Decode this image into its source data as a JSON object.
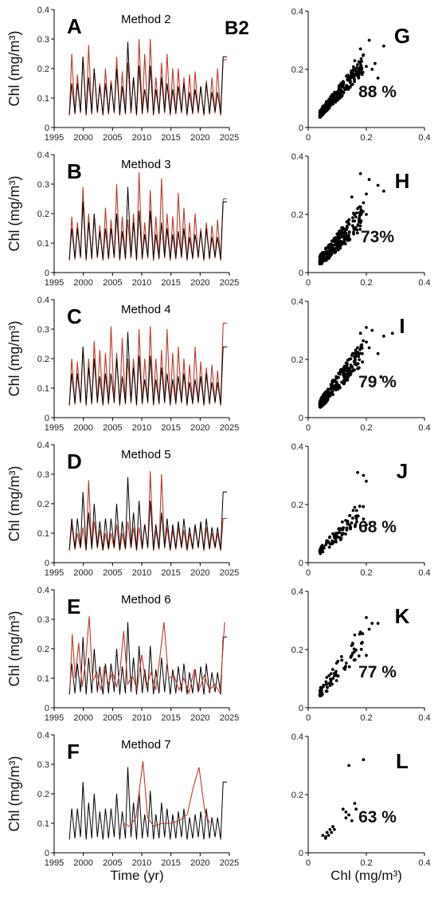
{
  "figure_label": "B2",
  "left_xlabel": "Time (yr)",
  "right_xlabel": "Chl (mg/m³)",
  "colors": {
    "observed": "#000000",
    "model": "#c0392b"
  },
  "chart_data": [
    {
      "id": "A",
      "type": "line",
      "title": "Method 2",
      "ylabel": "Chl (mg/m³)",
      "xlim": [
        1995,
        2025
      ],
      "ylim": [
        0,
        0.4
      ],
      "xticks": [
        "1995",
        "2000",
        "2005",
        "2010",
        "2015",
        "2020",
        "2025"
      ],
      "yticks": [
        "0",
        "0.1",
        "0.2",
        "0.3",
        "0.4"
      ],
      "series": [],
      "observed_peaks": [
        0.15,
        0.15,
        0.24,
        0.17,
        0.2,
        0.14,
        0.15,
        0.15,
        0.2,
        0.14,
        0.29,
        0.17,
        0.21,
        0.13,
        0.21,
        0.13,
        0.17,
        0.15,
        0.13,
        0.14,
        0.15,
        0.12,
        0.13,
        0.14,
        0.15,
        0.12,
        0.12,
        0.24
      ],
      "model_peaks": [
        0.25,
        0.18,
        0.24,
        0.28,
        0.2,
        0.15,
        0.2,
        0.16,
        0.24,
        0.19,
        0.22,
        0.17,
        0.3,
        0.25,
        0.3,
        0.17,
        0.22,
        0.25,
        0.2,
        0.2,
        0.17,
        0.18,
        0.19,
        0.14,
        0.16,
        0.17,
        0.2,
        0.23
      ],
      "model_irregular": false
    },
    {
      "id": "B",
      "type": "line",
      "title": "Method 3",
      "ylabel": "Chl (mg/m³)",
      "xlim": [
        1995,
        2025
      ],
      "ylim": [
        0,
        0.4
      ],
      "xticks": [
        "1995",
        "2000",
        "2005",
        "2010",
        "2015",
        "2020",
        "2025"
      ],
      "yticks": [
        "0",
        "0.1",
        "0.2",
        "0.3",
        "0.4"
      ],
      "series": [],
      "observed_peaks": [
        0.15,
        0.15,
        0.24,
        0.17,
        0.2,
        0.14,
        0.15,
        0.15,
        0.2,
        0.14,
        0.29,
        0.17,
        0.21,
        0.13,
        0.21,
        0.13,
        0.17,
        0.15,
        0.13,
        0.14,
        0.15,
        0.12,
        0.13,
        0.14,
        0.15,
        0.12,
        0.12,
        0.24
      ],
      "model_peaks": [
        0.19,
        0.17,
        0.29,
        0.2,
        0.19,
        0.16,
        0.22,
        0.18,
        0.3,
        0.19,
        0.18,
        0.2,
        0.34,
        0.17,
        0.28,
        0.19,
        0.32,
        0.2,
        0.19,
        0.27,
        0.22,
        0.17,
        0.2,
        0.15,
        0.17,
        0.16,
        0.18,
        0.25
      ],
      "model_irregular": false
    },
    {
      "id": "C",
      "type": "line",
      "title": "Method 4",
      "ylabel": "Chl (mg/m³)",
      "xlim": [
        1995,
        2025
      ],
      "ylim": [
        0,
        0.4
      ],
      "xticks": [
        "1995",
        "2000",
        "2005",
        "2010",
        "2015",
        "2020",
        "2025"
      ],
      "yticks": [
        "0",
        "0.1",
        "0.2",
        "0.3",
        "0.4"
      ],
      "series": [],
      "observed_peaks": [
        0.15,
        0.15,
        0.24,
        0.17,
        0.2,
        0.14,
        0.15,
        0.15,
        0.2,
        0.14,
        0.29,
        0.17,
        0.21,
        0.13,
        0.21,
        0.13,
        0.17,
        0.15,
        0.13,
        0.14,
        0.15,
        0.12,
        0.13,
        0.14,
        0.15,
        0.12,
        0.12,
        0.24
      ],
      "model_peaks": [
        0.2,
        0.19,
        0.24,
        0.2,
        0.26,
        0.23,
        0.22,
        0.31,
        0.22,
        0.27,
        0.2,
        0.2,
        0.3,
        0.2,
        0.31,
        0.2,
        0.23,
        0.3,
        0.22,
        0.24,
        0.2,
        0.18,
        0.24,
        0.19,
        0.17,
        0.18,
        0.16,
        0.32
      ],
      "model_irregular": false
    },
    {
      "id": "D",
      "type": "line",
      "title": "Method 5",
      "ylabel": "Chl (mg/m³)",
      "xlim": [
        1995,
        2025
      ],
      "ylim": [
        0,
        0.4
      ],
      "xticks": [
        "1995",
        "2000",
        "2005",
        "2010",
        "2015",
        "2020",
        "2025"
      ],
      "yticks": [
        "0",
        "0.1",
        "0.2",
        "0.3",
        "0.4"
      ],
      "series": [],
      "observed_peaks": [
        0.15,
        0.15,
        0.24,
        0.17,
        0.2,
        0.14,
        0.15,
        0.15,
        0.2,
        0.14,
        0.29,
        0.17,
        0.21,
        0.13,
        0.21,
        0.13,
        0.17,
        0.15,
        0.13,
        0.14,
        0.15,
        0.12,
        0.13,
        0.14,
        0.15,
        0.12,
        0.12,
        0.24
      ],
      "model_peaks": [
        0.13,
        0.1,
        0.12,
        0.28,
        0.14,
        0.11,
        0.1,
        0.1,
        0.13,
        0.1,
        0.14,
        0.12,
        0.12,
        0.13,
        0.31,
        0.11,
        0.3,
        0.12,
        0.11,
        0.12,
        0.11,
        0.1,
        0.12,
        0.13,
        0.12,
        0.1,
        0.1,
        0.15
      ],
      "model_irregular": false
    },
    {
      "id": "E",
      "type": "line",
      "title": "Method 6",
      "ylabel": "Chl (mg/m³)",
      "xlim": [
        1995,
        2025
      ],
      "ylim": [
        0,
        0.4
      ],
      "xticks": [
        "1995",
        "2000",
        "2005",
        "2010",
        "2015",
        "2020",
        "2025"
      ],
      "yticks": [
        "0",
        "0.1",
        "0.2",
        "0.3",
        "0.4"
      ],
      "series": [],
      "observed_peaks": [
        0.15,
        0.15,
        0.24,
        0.17,
        0.2,
        0.14,
        0.15,
        0.15,
        0.2,
        0.14,
        0.29,
        0.17,
        0.21,
        0.13,
        0.21,
        0.13,
        0.17,
        0.15,
        0.13,
        0.14,
        0.15,
        0.12,
        0.13,
        0.14,
        0.15,
        0.12,
        0.12,
        0.24
      ],
      "model_irregular": true,
      "model_points": [
        [
          1997.7,
          0.06
        ],
        [
          1998.1,
          0.25
        ],
        [
          1998.6,
          0.1
        ],
        [
          1999.2,
          0.22
        ],
        [
          1999.8,
          0.07
        ],
        [
          2000.4,
          0.16
        ],
        [
          2001.0,
          0.31
        ],
        [
          2001.6,
          0.09
        ],
        [
          2002.3,
          0.12
        ],
        [
          2003.0,
          0.06
        ],
        [
          2003.6,
          0.14
        ],
        [
          2004.3,
          0.08
        ],
        [
          2005.0,
          0.12
        ],
        [
          2005.7,
          0.07
        ],
        [
          2006.3,
          0.13
        ],
        [
          2006.9,
          0.26
        ],
        [
          2007.6,
          0.08
        ],
        [
          2008.4,
          0.11
        ],
        [
          2009.2,
          0.06
        ],
        [
          2010.0,
          0.18
        ],
        [
          2010.8,
          0.07
        ],
        [
          2011.6,
          0.12
        ],
        [
          2012.4,
          0.06
        ],
        [
          2013.1,
          0.17
        ],
        [
          2013.8,
          0.29
        ],
        [
          2014.6,
          0.1
        ],
        [
          2015.5,
          0.11
        ],
        [
          2016.4,
          0.06
        ],
        [
          2017.2,
          0.1
        ],
        [
          2018.1,
          0.05
        ],
        [
          2019.0,
          0.13
        ],
        [
          2019.8,
          0.06
        ],
        [
          2020.7,
          0.11
        ],
        [
          2021.6,
          0.06
        ],
        [
          2022.5,
          0.08
        ],
        [
          2023.4,
          0.05
        ],
        [
          2024.2,
          0.29
        ]
      ]
    },
    {
      "id": "F",
      "type": "line",
      "title": "Method 7",
      "ylabel": "Chl (mg/m³)",
      "xlim": [
        1995,
        2025
      ],
      "ylim": [
        0,
        0.4
      ],
      "xticks": [
        "1995",
        "2000",
        "2005",
        "2010",
        "2015",
        "2020",
        "2025"
      ],
      "yticks": [
        "0",
        "0.1",
        "0.2",
        "0.3",
        "0.4"
      ],
      "series": [],
      "observed_peaks": [
        0.15,
        0.15,
        0.24,
        0.17,
        0.2,
        0.14,
        0.15,
        0.15,
        0.2,
        0.14,
        0.29,
        0.17,
        0.21,
        0.13,
        0.21,
        0.13,
        0.17,
        0.15,
        0.13,
        0.14,
        0.15,
        0.12,
        0.13,
        0.14,
        0.15,
        0.12,
        0.12,
        0.24
      ],
      "model_irregular": true,
      "model_points": [
        [
          2006.8,
          0.1
        ],
        [
          2008.0,
          0.09
        ],
        [
          2009.0,
          0.12
        ],
        [
          2010.2,
          0.31
        ],
        [
          2011.0,
          0.12
        ],
        [
          2012.0,
          0.09
        ],
        [
          2013.5,
          0.1
        ],
        [
          2015.0,
          0.1
        ],
        [
          2016.5,
          0.11
        ],
        [
          2017.8,
          0.13
        ],
        [
          2018.8,
          0.22
        ],
        [
          2019.8,
          0.29
        ],
        [
          2020.8,
          0.14
        ],
        [
          2021.6,
          0.1
        ]
      ]
    },
    {
      "id": "G",
      "type": "scatter",
      "label": "88 %",
      "xlim": [
        0,
        0.4
      ],
      "ylim": [
        0,
        0.4
      ],
      "xticks": [
        "0",
        "0.2",
        "0.4"
      ],
      "yticks": [
        "0",
        "0.2",
        "0.4"
      ],
      "n": 240,
      "spread": 0.022,
      "slope": 1.15,
      "seed": 11,
      "extra": [
        [
          0.21,
          0.3
        ],
        [
          0.26,
          0.28
        ],
        [
          0.19,
          0.25
        ],
        [
          0.23,
          0.22
        ],
        [
          0.2,
          0.21
        ],
        [
          0.24,
          0.17
        ],
        [
          0.18,
          0.27
        ],
        [
          0.16,
          0.23
        ],
        [
          0.22,
          0.2
        ]
      ]
    },
    {
      "id": "H",
      "type": "scatter",
      "label": "73%",
      "xlim": [
        0,
        0.4
      ],
      "ylim": [
        0,
        0.4
      ],
      "xticks": [
        "0",
        "0.2",
        "0.4"
      ],
      "yticks": [
        "0",
        "0.2",
        "0.4"
      ],
      "n": 240,
      "spread": 0.03,
      "slope": 1.05,
      "seed": 23,
      "extra": [
        [
          0.18,
          0.34
        ],
        [
          0.21,
          0.32
        ],
        [
          0.26,
          0.28
        ],
        [
          0.2,
          0.2
        ],
        [
          0.24,
          0.3
        ],
        [
          0.2,
          0.27
        ],
        [
          0.17,
          0.22
        ],
        [
          0.15,
          0.26
        ],
        [
          0.19,
          0.24
        ]
      ]
    },
    {
      "id": "I",
      "type": "scatter",
      "label": "79 %",
      "xlim": [
        0,
        0.4
      ],
      "ylim": [
        0,
        0.4
      ],
      "xticks": [
        "0",
        "0.2",
        "0.4"
      ],
      "yticks": [
        "0",
        "0.2",
        "0.4"
      ],
      "n": 240,
      "spread": 0.028,
      "slope": 1.2,
      "seed": 37,
      "extra": [
        [
          0.2,
          0.31
        ],
        [
          0.22,
          0.3
        ],
        [
          0.29,
          0.29
        ],
        [
          0.25,
          0.14
        ],
        [
          0.26,
          0.28
        ],
        [
          0.2,
          0.26
        ],
        [
          0.21,
          0.24
        ],
        [
          0.24,
          0.22
        ],
        [
          0.18,
          0.29
        ]
      ]
    },
    {
      "id": "J",
      "type": "scatter",
      "label": "68 %",
      "xlim": [
        0,
        0.4
      ],
      "ylim": [
        0,
        0.4
      ],
      "xticks": [
        "0",
        "0.2",
        "0.4"
      ],
      "yticks": [
        "0",
        "0.2",
        "0.4"
      ],
      "n": 85,
      "spread": 0.025,
      "slope": 0.95,
      "seed": 41,
      "extra": [
        [
          0.17,
          0.31
        ],
        [
          0.2,
          0.28
        ],
        [
          0.19,
          0.3
        ],
        [
          0.2,
          0.13
        ],
        [
          0.19,
          0.15
        ],
        [
          0.16,
          0.19
        ]
      ]
    },
    {
      "id": "K",
      "type": "scatter",
      "label": "77 %",
      "xlim": [
        0,
        0.4
      ],
      "ylim": [
        0,
        0.4
      ],
      "xticks": [
        "0",
        "0.2",
        "0.4"
      ],
      "yticks": [
        "0",
        "0.2",
        "0.4"
      ],
      "n": 70,
      "spread": 0.03,
      "slope": 1.25,
      "seed": 53,
      "extra": [
        [
          0.2,
          0.31
        ],
        [
          0.22,
          0.29
        ],
        [
          0.24,
          0.29
        ],
        [
          0.18,
          0.26
        ],
        [
          0.16,
          0.25
        ],
        [
          0.21,
          0.27
        ],
        [
          0.2,
          0.18
        ],
        [
          0.15,
          0.18
        ]
      ]
    },
    {
      "id": "L",
      "type": "scatter",
      "label": "63 %",
      "xlim": [
        0,
        0.4
      ],
      "ylim": [
        0,
        0.4
      ],
      "xticks": [
        "0",
        "0.2",
        "0.4"
      ],
      "yticks": [
        "0",
        "0.2",
        "0.4"
      ],
      "n": 0,
      "spread": 0,
      "slope": 1,
      "seed": 61,
      "extra": [
        [
          0.05,
          0.06
        ],
        [
          0.06,
          0.055
        ],
        [
          0.065,
          0.07
        ],
        [
          0.07,
          0.06
        ],
        [
          0.075,
          0.08
        ],
        [
          0.08,
          0.07
        ],
        [
          0.085,
          0.09
        ],
        [
          0.09,
          0.08
        ],
        [
          0.06,
          0.05
        ],
        [
          0.12,
          0.15
        ],
        [
          0.13,
          0.14
        ],
        [
          0.13,
          0.12
        ],
        [
          0.14,
          0.13
        ],
        [
          0.15,
          0.11
        ],
        [
          0.16,
          0.17
        ],
        [
          0.165,
          0.15
        ],
        [
          0.14,
          0.3
        ],
        [
          0.19,
          0.32
        ]
      ]
    }
  ]
}
